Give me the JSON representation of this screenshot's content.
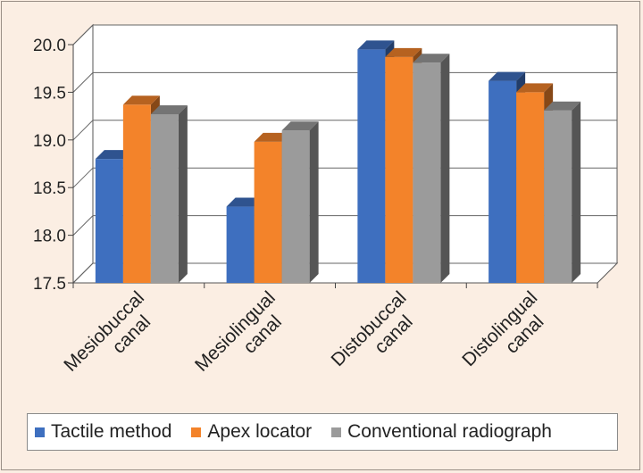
{
  "chart_data": {
    "type": "bar",
    "categories": [
      [
        "Mesiobuccal",
        "canal"
      ],
      [
        "Mesiolingual",
        "canal"
      ],
      [
        "Distobuccal",
        "canal"
      ],
      [
        "Distolingual",
        "canal"
      ]
    ],
    "series": [
      {
        "name": "Tactile method",
        "color": "#3e6fbf",
        "values": [
          18.8,
          18.3,
          19.95,
          19.62
        ]
      },
      {
        "name": "Apex locator",
        "color": "#f3832a",
        "values": [
          19.37,
          18.98,
          19.87,
          19.5
        ]
      },
      {
        "name": "Conventional radiograph",
        "color": "#9b9b9b",
        "values": [
          19.27,
          19.1,
          19.81,
          19.31
        ]
      }
    ],
    "yticks": [
      "17.5",
      "18.0",
      "18.5",
      "19.0",
      "19.5",
      "20.0"
    ],
    "ylim": [
      17.5,
      20.0
    ],
    "grid": true,
    "legend_position": "bottom"
  }
}
